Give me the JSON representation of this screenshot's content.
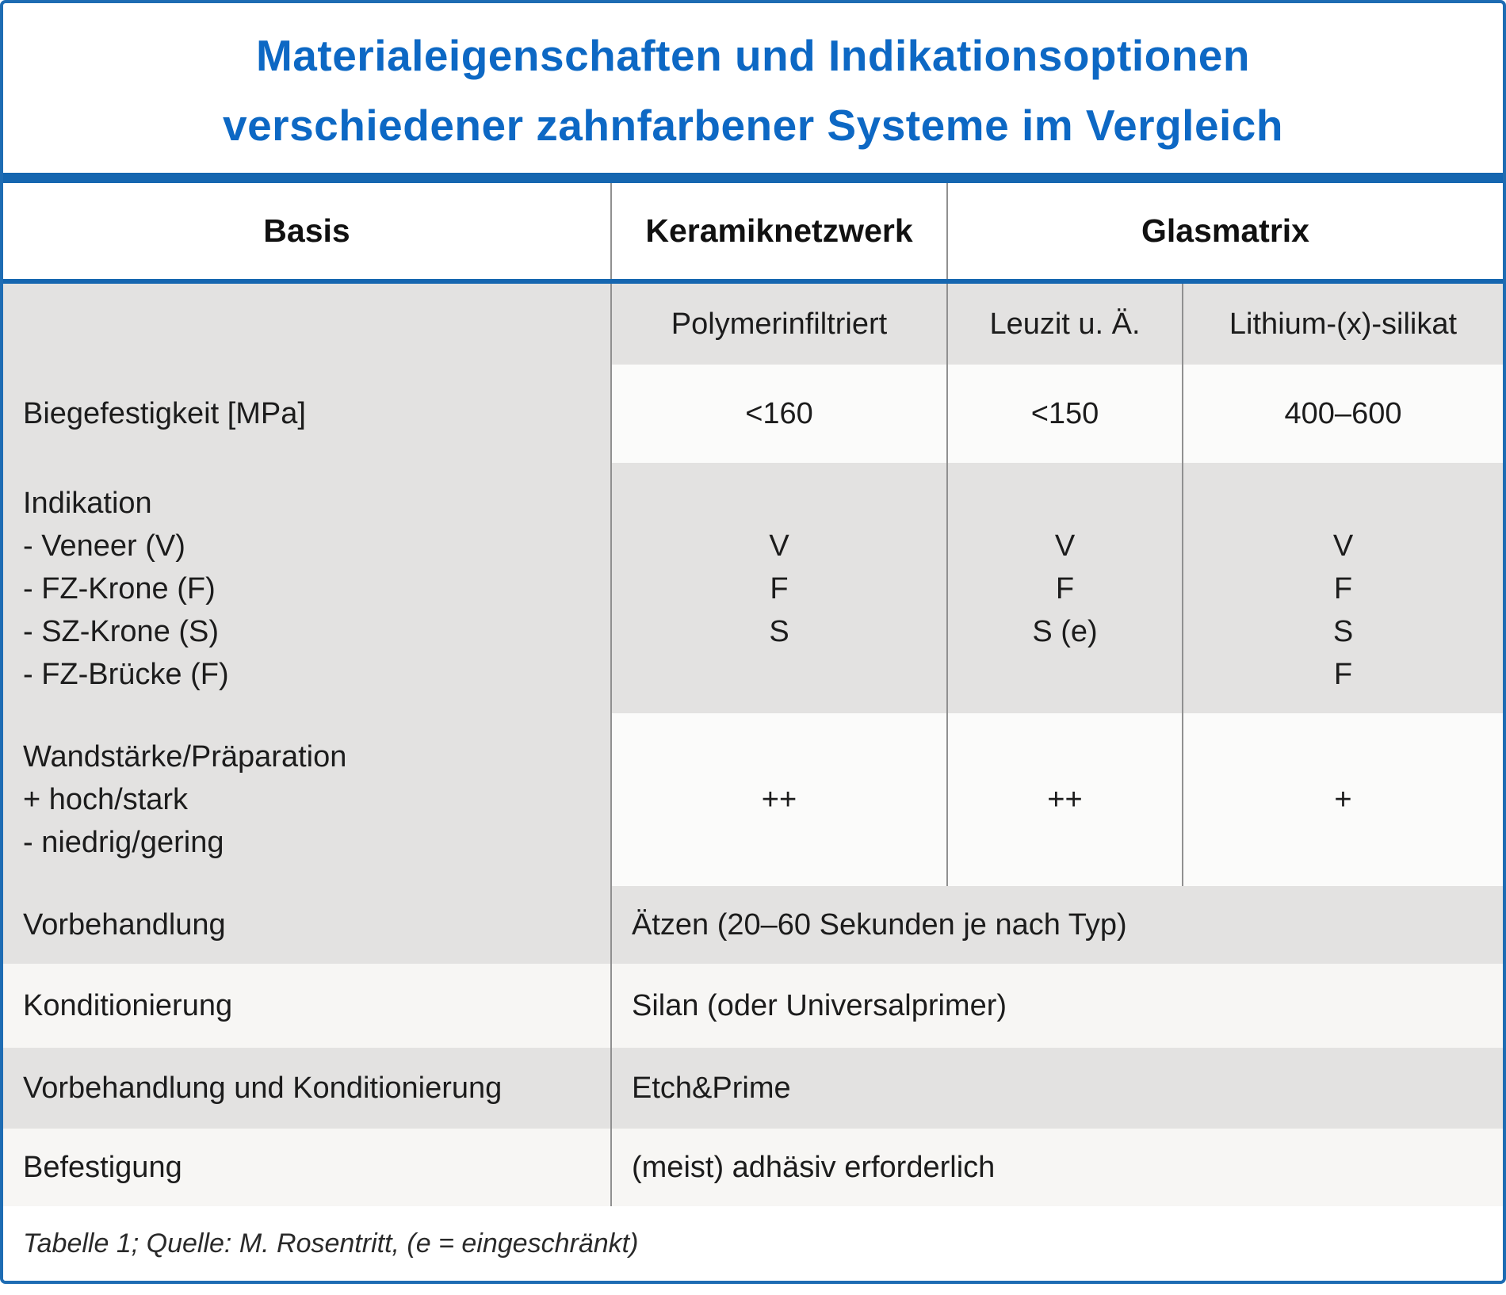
{
  "title": {
    "line1": "Materialeigenschaften und Indikationsoptionen",
    "line2": "verschiedener zahnfarbener Systeme im Vergleich"
  },
  "header": {
    "basis": "Basis",
    "keramiknetzwerk": "Keramiknetzwerk",
    "glasmatrix": "Glasmatrix"
  },
  "subheader": {
    "polymer": "Polymerinfiltriert",
    "leuzit": "Leuzit u. Ä.",
    "lithium": "Lithium-(x)-silikat"
  },
  "rows": {
    "biegefestigkeit": {
      "label": "Biegefestigkeit [MPa]",
      "polymer": "<160",
      "leuzit": "<150",
      "lithium": "400–600"
    },
    "indikation": {
      "label_lines": [
        "Indikation",
        "- Veneer (V)",
        "- FZ-Krone (F)",
        "- SZ-Krone (S)",
        "- FZ-Brücke (F)"
      ],
      "polymer": [
        "V",
        "F",
        "S"
      ],
      "leuzit": [
        "V",
        "F",
        "S (e)"
      ],
      "lithium": [
        "V",
        "F",
        "S",
        "F"
      ]
    },
    "wandstaerke": {
      "label_lines": [
        "Wandstärke/Präparation",
        "+ hoch/stark",
        "- niedrig/gering"
      ],
      "polymer": "++",
      "leuzit": "++",
      "lithium": "+"
    },
    "vorbehandlung": {
      "label": "Vorbehandlung",
      "value": "Ätzen (20–60 Sekunden je nach Typ)"
    },
    "konditionierung": {
      "label": "Konditionierung",
      "value": "Silan (oder Universalprimer)"
    },
    "vorbehandlung_und_konditionierung": {
      "label": "Vorbehandlung und Konditionierung",
      "value": "Etch&Prime"
    },
    "befestigung": {
      "label": "Befestigung",
      "value": "(meist) adhäsiv erforderlich"
    }
  },
  "footer": "Tabelle 1; Quelle: M. Rosentritt, (e = eingeschränkt)",
  "colors": {
    "accent_blue_bars": "#1566b0",
    "title_blue": "#0d68c4",
    "row_gray": "#e3e2e1",
    "row_light": "#f7f6f4",
    "cell_white": "#fbfbfa",
    "divider_gray": "#909090"
  },
  "chart_data": {
    "type": "table",
    "title": "Materialeigenschaften und Indikationsoptionen verschiedener zahnfarbener Systeme im Vergleich",
    "column_groups": [
      "Basis",
      "Keramiknetzwerk",
      "Glasmatrix",
      "Glasmatrix"
    ],
    "columns": [
      "Basis",
      "Polymerinfiltriert",
      "Leuzit u. Ä.",
      "Lithium-(x)-silikat"
    ],
    "rows": [
      {
        "label": "Biegefestigkeit [MPa]",
        "values": [
          "<160",
          "<150",
          "400–600"
        ]
      },
      {
        "label": "Indikation - Veneer (V) - FZ-Krone (F) - SZ-Krone (S) - FZ-Brücke (F)",
        "values": [
          "V, F, S",
          "V, F, S (e)",
          "V, F, S, F"
        ]
      },
      {
        "label": "Wandstärke/Präparation + hoch/stark - niedrig/gering",
        "values": [
          "++",
          "++",
          "+"
        ]
      },
      {
        "label": "Vorbehandlung",
        "values": [
          "Ätzen (20–60 Sekunden je nach Typ)"
        ],
        "span": "all"
      },
      {
        "label": "Konditionierung",
        "values": [
          "Silan (oder Universalprimer)"
        ],
        "span": "all"
      },
      {
        "label": "Vorbehandlung und Konditionierung",
        "values": [
          "Etch&Prime"
        ],
        "span": "all"
      },
      {
        "label": "Befestigung",
        "values": [
          "(meist) adhäsiv erforderlich"
        ],
        "span": "all"
      }
    ],
    "footnote": "Tabelle 1; Quelle: M. Rosentritt, (e = eingeschränkt)"
  }
}
